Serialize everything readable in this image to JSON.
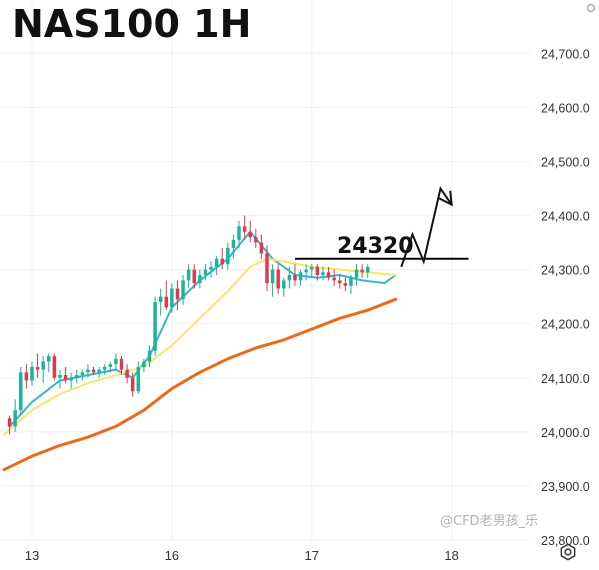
{
  "title": "NAS100 1H",
  "annotation_level_label": "24320",
  "watermark": "@CFD老男孩_乐",
  "icons": {
    "settings": "settings-icon",
    "corner": "circle-icon"
  },
  "colors": {
    "up_candle": "#1bb39a",
    "down_candle": "#e0394f",
    "ema_fast": "#37b6c9",
    "ema_mid": "#f6e66a",
    "ema_slow": "#e86a1a",
    "level_line": "#000000",
    "grid": "#eef0f3",
    "axis_text": "#333333"
  },
  "chart_data": {
    "type": "line",
    "title": "NAS100 1H",
    "xlabel": "",
    "ylabel": "",
    "ylim": [
      23800,
      24780
    ],
    "y_ticks": [
      "24,700.0",
      "24,600.0",
      "24,500.0",
      "24,400.0",
      "24,300.0",
      "24,200.0",
      "24,100.0",
      "24,000.0",
      "23,900.0",
      "23,800.0"
    ],
    "y_tick_values": [
      24700,
      24600,
      24500,
      24400,
      24300,
      24200,
      24100,
      24000,
      23900,
      23800
    ],
    "x_ticks": [
      "13",
      "16",
      "17",
      "18"
    ],
    "x_tick_values": [
      5,
      30,
      55,
      80
    ],
    "x_range": [
      0,
      94
    ],
    "grid": true,
    "horizontal_level": 24320,
    "level_line_x_range": [
      52,
      83
    ],
    "projection_path": [
      [
        71,
        24305
      ],
      [
        73,
        24365
      ],
      [
        75,
        24315
      ],
      [
        78,
        24450
      ],
      [
        80,
        24420
      ]
    ],
    "candles": [
      [
        24025,
        24030,
        23995,
        24010
      ],
      [
        24010,
        24060,
        24000,
        24040
      ],
      [
        24040,
        24120,
        24030,
        24110
      ],
      [
        24110,
        24125,
        24080,
        24095
      ],
      [
        24095,
        24130,
        24085,
        24120
      ],
      [
        24120,
        24145,
        24100,
        24115
      ],
      [
        24115,
        24140,
        24090,
        24130
      ],
      [
        24130,
        24145,
        24110,
        24140
      ],
      [
        24140,
        24145,
        24095,
        24100
      ],
      [
        24100,
        24115,
        24080,
        24105
      ],
      [
        24105,
        24120,
        24090,
        24095
      ],
      [
        24095,
        24110,
        24080,
        24100
      ],
      [
        24100,
        24115,
        24090,
        24105
      ],
      [
        24105,
        24115,
        24095,
        24110
      ],
      [
        24110,
        24125,
        24100,
        24115
      ],
      [
        24115,
        24120,
        24105,
        24110
      ],
      [
        24110,
        24120,
        24100,
        24115
      ],
      [
        24115,
        24125,
        24105,
        24120
      ],
      [
        24120,
        24130,
        24110,
        24125
      ],
      [
        24125,
        24145,
        24115,
        24135
      ],
      [
        24135,
        24140,
        24105,
        24115
      ],
      [
        24115,
        24125,
        24090,
        24100
      ],
      [
        24100,
        24110,
        24065,
        24075
      ],
      [
        24075,
        24130,
        24070,
        24120
      ],
      [
        24120,
        24135,
        24110,
        24130
      ],
      [
        24130,
        24160,
        24120,
        24150
      ],
      [
        24150,
        24250,
        24140,
        24240
      ],
      [
        24240,
        24265,
        24215,
        24250
      ],
      [
        24250,
        24280,
        24225,
        24230
      ],
      [
        24230,
        24275,
        24220,
        24265
      ],
      [
        24265,
        24280,
        24225,
        24245
      ],
      [
        24245,
        24290,
        24235,
        24280
      ],
      [
        24280,
        24310,
        24265,
        24300
      ],
      [
        24300,
        24310,
        24265,
        24275
      ],
      [
        24275,
        24300,
        24265,
        24290
      ],
      [
        24290,
        24310,
        24280,
        24300
      ],
      [
        24300,
        24315,
        24285,
        24305
      ],
      [
        24305,
        24325,
        24290,
        24320
      ],
      [
        24320,
        24340,
        24300,
        24310
      ],
      [
        24310,
        24350,
        24300,
        24340
      ],
      [
        24340,
        24365,
        24320,
        24355
      ],
      [
        24355,
        24390,
        24340,
        24380
      ],
      [
        24380,
        24400,
        24355,
        24370
      ],
      [
        24370,
        24390,
        24350,
        24360
      ],
      [
        24360,
        24375,
        24340,
        24350
      ],
      [
        24350,
        24365,
        24320,
        24330
      ],
      [
        24330,
        24345,
        24260,
        24275
      ],
      [
        24275,
        24310,
        24250,
        24300
      ],
      [
        24300,
        24310,
        24255,
        24265
      ],
      [
        24265,
        24285,
        24250,
        24280
      ],
      [
        24280,
        24305,
        24265,
        24290
      ],
      [
        24290,
        24310,
        24270,
        24280
      ],
      [
        24280,
        24300,
        24270,
        24295
      ],
      [
        24295,
        24310,
        24280,
        24300
      ],
      [
        24300,
        24310,
        24285,
        24305
      ],
      [
        24305,
        24310,
        24280,
        24290
      ],
      [
        24290,
        24305,
        24280,
        24295
      ],
      [
        24295,
        24305,
        24280,
        24285
      ],
      [
        24285,
        24300,
        24270,
        24280
      ],
      [
        24280,
        24290,
        24265,
        24275
      ],
      [
        24275,
        24285,
        24260,
        24270
      ],
      [
        24270,
        24290,
        24255,
        24285
      ],
      [
        24285,
        24310,
        24270,
        24300
      ],
      [
        24300,
        24310,
        24285,
        24295
      ],
      [
        24295,
        24310,
        24285,
        24305
      ]
    ],
    "series": [
      {
        "color": "#37b6c9",
        "x": [
          1,
          5,
          10,
          15,
          20,
          23,
          26,
          30,
          35,
          40,
          44,
          46,
          48,
          52,
          56,
          60,
          64,
          68,
          70
        ],
        "y": [
          24010,
          24055,
          24095,
          24105,
          24115,
          24100,
          24140,
          24230,
          24280,
          24320,
          24370,
          24345,
          24320,
          24290,
          24285,
          24290,
          24280,
          24275,
          24290
        ]
      },
      {
        "color": "#f6e66a",
        "x": [
          0,
          5,
          10,
          15,
          20,
          25,
          30,
          35,
          40,
          44,
          47,
          50,
          55,
          60,
          65,
          70
        ],
        "y": [
          23995,
          24040,
          24070,
          24090,
          24105,
          24120,
          24160,
          24210,
          24260,
          24305,
          24320,
          24315,
          24305,
          24300,
          24295,
          24290
        ]
      },
      {
        "color": "#e86a1a",
        "x": [
          0,
          5,
          10,
          15,
          20,
          25,
          30,
          35,
          40,
          45,
          50,
          55,
          60,
          65,
          70
        ],
        "y": [
          23930,
          23955,
          23975,
          23990,
          24010,
          24040,
          24080,
          24110,
          24135,
          24155,
          24170,
          24190,
          24210,
          24225,
          24245
        ]
      }
    ]
  }
}
